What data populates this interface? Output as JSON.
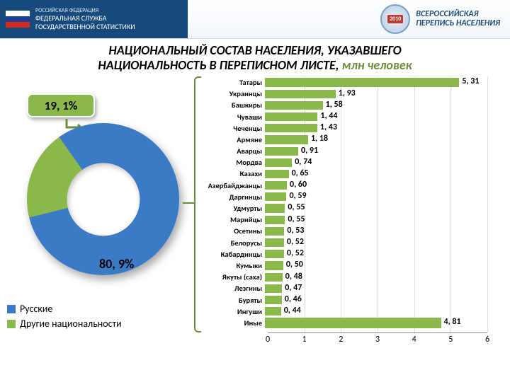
{
  "header": {
    "line1": "РОССИЙСКАЯ ФЕДЕРАЦИЯ",
    "line2": "ФЕДЕРАЛЬНАЯ СЛУЖБА",
    "line3": "ГОСУДАРСТВЕННОЙ СТАТИСТИКИ",
    "flag_colors": [
      "#ffffff",
      "#1c3f94",
      "#d52b1e"
    ],
    "census_year": "2010",
    "census_l1": "ВСЕРОССИЙСКАЯ",
    "census_l2": "ПЕРЕПИСЬ НАСЕЛЕНИЯ"
  },
  "title": {
    "main": "НАЦИОНАЛЬНЫЙ СОСТАВ НАСЕЛЕНИЯ, УКАЗАВШЕГО",
    "line2_a": "НАЦИОНАЛЬНОСТЬ В ПЕРЕПИСНОМ ЛИСТЕ,",
    "line2_b": " млн человек",
    "main_color": "#111111",
    "sub_color": "#6a8f3a"
  },
  "donut": {
    "slices": [
      {
        "label": "Русские",
        "value": 80.9,
        "color": "#3b7ac4"
      },
      {
        "label": "Другие национальности",
        "value": 19.1,
        "color": "#8bb84a"
      }
    ],
    "center_hole_color": "#ffffff",
    "shadow_color": "rgba(0,0,0,0.35)",
    "big_label": "80, 9%",
    "callout_label": "19, 1%"
  },
  "legend": [
    {
      "swatch": "#3b7ac4",
      "text": "Русские"
    },
    {
      "swatch": "#8bb84a",
      "text": "Другие национальности"
    }
  ],
  "barchart": {
    "type": "bar-horizontal",
    "x_min": 0,
    "x_max": 6,
    "x_step": 1,
    "bar_color": "#8bb84a",
    "text_color": "#000000",
    "grid_color": "#dddddd",
    "rows": [
      {
        "label": "Татары",
        "value": 5.31,
        "disp": "5, 31"
      },
      {
        "label": "Украинцы",
        "value": 1.93,
        "disp": "1, 93"
      },
      {
        "label": "Башкиры",
        "value": 1.58,
        "disp": "1, 58"
      },
      {
        "label": "Чуваши",
        "value": 1.44,
        "disp": "1, 44"
      },
      {
        "label": "Чеченцы",
        "value": 1.43,
        "disp": "1, 43"
      },
      {
        "label": "Армяне",
        "value": 1.18,
        "disp": "1, 18"
      },
      {
        "label": "Аварцы",
        "value": 0.91,
        "disp": "0, 91"
      },
      {
        "label": "Мордва",
        "value": 0.74,
        "disp": "0, 74"
      },
      {
        "label": "Казахи",
        "value": 0.65,
        "disp": "0, 65"
      },
      {
        "label": "Азербайджанцы",
        "value": 0.6,
        "disp": "0, 60"
      },
      {
        "label": "Даргинцы",
        "value": 0.59,
        "disp": "0, 59"
      },
      {
        "label": "Удмурты",
        "value": 0.55,
        "disp": "0, 55"
      },
      {
        "label": "Марийцы",
        "value": 0.55,
        "disp": "0, 55"
      },
      {
        "label": "Осетины",
        "value": 0.53,
        "disp": "0, 53"
      },
      {
        "label": "Белорусы",
        "value": 0.52,
        "disp": "0, 52"
      },
      {
        "label": "Кабардинцы",
        "value": 0.52,
        "disp": "0, 52"
      },
      {
        "label": "Кумыки",
        "value": 0.5,
        "disp": "0, 50"
      },
      {
        "label": "Якуты (саха)",
        "value": 0.48,
        "disp": "0, 48"
      },
      {
        "label": "Лезгины",
        "value": 0.47,
        "disp": "0, 47"
      },
      {
        "label": "Буряты",
        "value": 0.46,
        "disp": "0, 46"
      },
      {
        "label": "Ингуши",
        "value": 0.44,
        "disp": "0, 44"
      },
      {
        "label": "Иные",
        "value": 4.81,
        "disp": "4, 81"
      }
    ]
  }
}
